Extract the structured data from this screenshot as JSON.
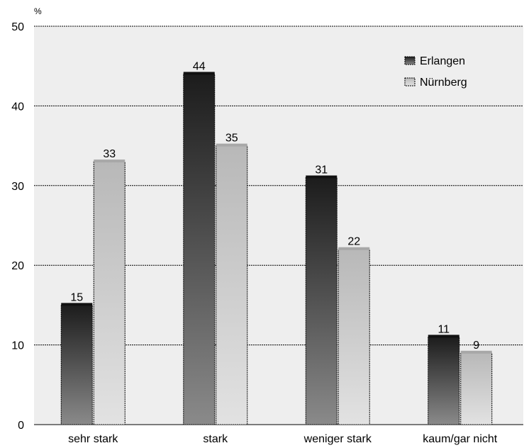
{
  "chart_data": {
    "type": "bar",
    "unit": "%",
    "categories": [
      "sehr stark",
      "stark",
      "weniger stark",
      "kaum/gar nicht"
    ],
    "series": [
      {
        "name": "Erlangen",
        "values": [
          15,
          44,
          31,
          11
        ]
      },
      {
        "name": "Nürnberg",
        "values": [
          33,
          35,
          22,
          9
        ]
      }
    ],
    "ylim": [
      0,
      50
    ],
    "yticks": [
      0,
      10,
      20,
      30,
      40,
      50
    ],
    "grid": true,
    "legend_position": "top-right",
    "colors": {
      "background": "#eeeeee",
      "Erlangen_top": "#1c1c1c",
      "Erlangen_bottom": "#8a8a8a",
      "Nürnberg_top": "#b8b8b8",
      "Nürnberg_bottom": "#e2e2e2"
    }
  }
}
